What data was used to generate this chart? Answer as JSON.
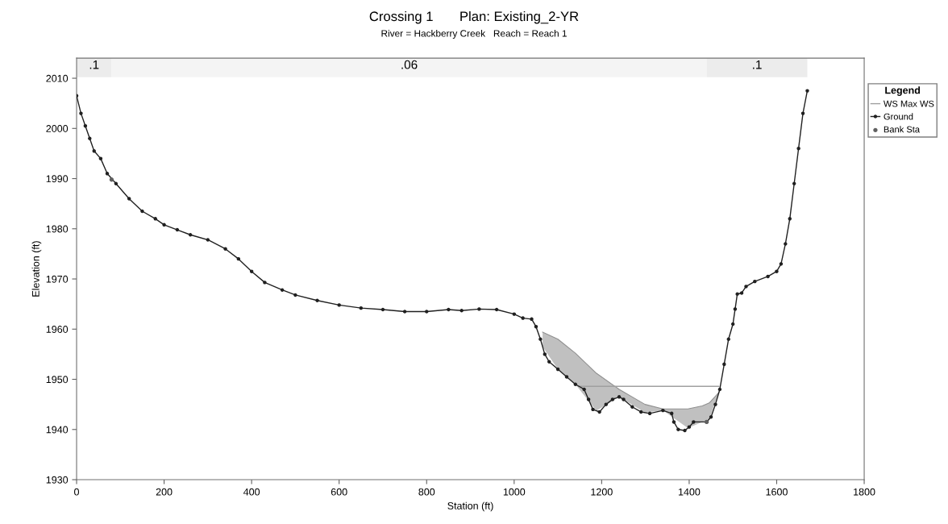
{
  "chart_data": {
    "type": "line",
    "title": "Crossing 1       Plan: Existing_2-YR",
    "subtitle": "River = Hackberry Creek   Reach = Reach 1",
    "xlabel": "Station (ft)",
    "ylabel": "Elevation (ft)",
    "legend_title": "Legend",
    "legend": "right",
    "grid": false,
    "xlim": [
      0,
      1800
    ],
    "xticks": [
      0,
      200,
      400,
      600,
      800,
      1000,
      1200,
      1400,
      1600,
      1800
    ],
    "ylim": [
      1930,
      2014
    ],
    "yticks": [
      1930,
      1940,
      1950,
      1960,
      1970,
      1980,
      1990,
      2000,
      2010
    ],
    "bands": [
      {
        "axis": "x",
        "from": 0,
        "to": 80,
        "label": ".1",
        "color": "#ececec"
      },
      {
        "axis": "x",
        "from": 80,
        "to": 1440,
        "label": ".06",
        "color": "#f4f4f4"
      },
      {
        "axis": "x",
        "from": 1440,
        "to": 1670,
        "label": ".1",
        "color": "#ececec"
      }
    ],
    "series": [
      {
        "type": "area",
        "color": "#c0c0c0",
        "x": [
          1065,
          1100,
          1140,
          1188,
          1240,
          1299,
          1340,
          1397,
          1430,
          1446,
          1468
        ],
        "values": [
          1959.4,
          1958,
          1955.2,
          1951.2,
          1948,
          1945,
          1944.1,
          1944.1,
          1944.7,
          1945.3,
          1947.4
        ]
      },
      {
        "type": "line",
        "name": "WS Max WS",
        "color": "#a0a0a0",
        "marker": "none",
        "x": [
          1148,
          1468
        ],
        "values": [
          1948.6,
          1948.6
        ]
      },
      {
        "name": "Ground",
        "color": "#202020",
        "marker": "circle",
        "x": [
          0,
          10,
          20,
          30,
          40,
          55,
          70,
          90,
          120,
          150,
          180,
          200,
          230,
          260,
          300,
          340,
          370,
          400,
          430,
          470,
          500,
          550,
          600,
          650,
          700,
          750,
          800,
          850,
          880,
          920,
          960,
          1000,
          1020,
          1040,
          1050,
          1060,
          1070,
          1080,
          1100,
          1120,
          1140,
          1160,
          1170,
          1180,
          1195,
          1210,
          1225,
          1240,
          1250,
          1270,
          1290,
          1310,
          1340,
          1360,
          1365,
          1375,
          1390,
          1400,
          1410,
          1440,
          1450,
          1460,
          1470,
          1480,
          1490,
          1500,
          1505,
          1510,
          1520,
          1530,
          1550,
          1580,
          1600,
          1610,
          1620,
          1630,
          1640,
          1650,
          1660,
          1670
        ],
        "values": [
          2006.5,
          2003,
          2000.5,
          1998,
          1995.5,
          1994,
          1991,
          1989,
          1986,
          1983.5,
          1982,
          1980.8,
          1979.8,
          1978.8,
          1977.8,
          1976,
          1974,
          1971.5,
          1969.3,
          1967.8,
          1966.8,
          1965.7,
          1964.8,
          1964.2,
          1963.9,
          1963.5,
          1963.5,
          1963.9,
          1963.7,
          1964,
          1963.9,
          1963,
          1962.2,
          1962,
          1960.5,
          1958,
          1955,
          1953.5,
          1952,
          1950.5,
          1949,
          1948,
          1946,
          1944,
          1943.5,
          1945,
          1946,
          1946.5,
          1946,
          1944.5,
          1943.5,
          1943.2,
          1943.8,
          1943.2,
          1941.5,
          1940,
          1939.8,
          1940.5,
          1941.5,
          1941.5,
          1942.5,
          1945,
          1948,
          1953,
          1958,
          1961,
          1964,
          1967,
          1967.2,
          1968.5,
          1969.5,
          1970.5,
          1971.5,
          1973,
          1977,
          1982,
          1989,
          1996,
          2003,
          2007.5
        ]
      },
      {
        "type": "scatter",
        "name": "Bank Sta",
        "color": "#606060",
        "marker": "circle",
        "x": [
          80,
          1440
        ],
        "values": [
          1989.8,
          1941.5
        ]
      }
    ]
  }
}
